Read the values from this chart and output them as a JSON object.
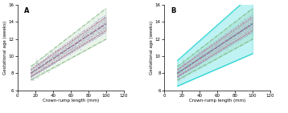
{
  "title_A": "A",
  "title_B": "B",
  "xlabel": "Crown-rump length (mm)",
  "ylabel": "Gestational age (weeks)",
  "xlim": [
    0,
    120
  ],
  "ylim": [
    6,
    16
  ],
  "yticks": [
    6,
    8,
    10,
    12,
    14,
    16
  ],
  "xticks": [
    0,
    20,
    40,
    60,
    80,
    100,
    120
  ],
  "data_color": "#b8b8cc",
  "approach1_color": "#c06070",
  "approach2_color": "#7070c8",
  "approach3_color": "#60a860",
  "intergrowth_color": "#00cccc",
  "bg_color": "#ffffff",
  "crl_start": 15,
  "crl_end": 100,
  "ga_start": 8.0,
  "ga_end": 13.8,
  "spread_low_start": 0.4,
  "spread_low_end": 0.8,
  "spread_wide_start": 0.8,
  "spread_wide_end": 1.8,
  "spread_ig_start": 1.5,
  "spread_ig_end": 3.5
}
